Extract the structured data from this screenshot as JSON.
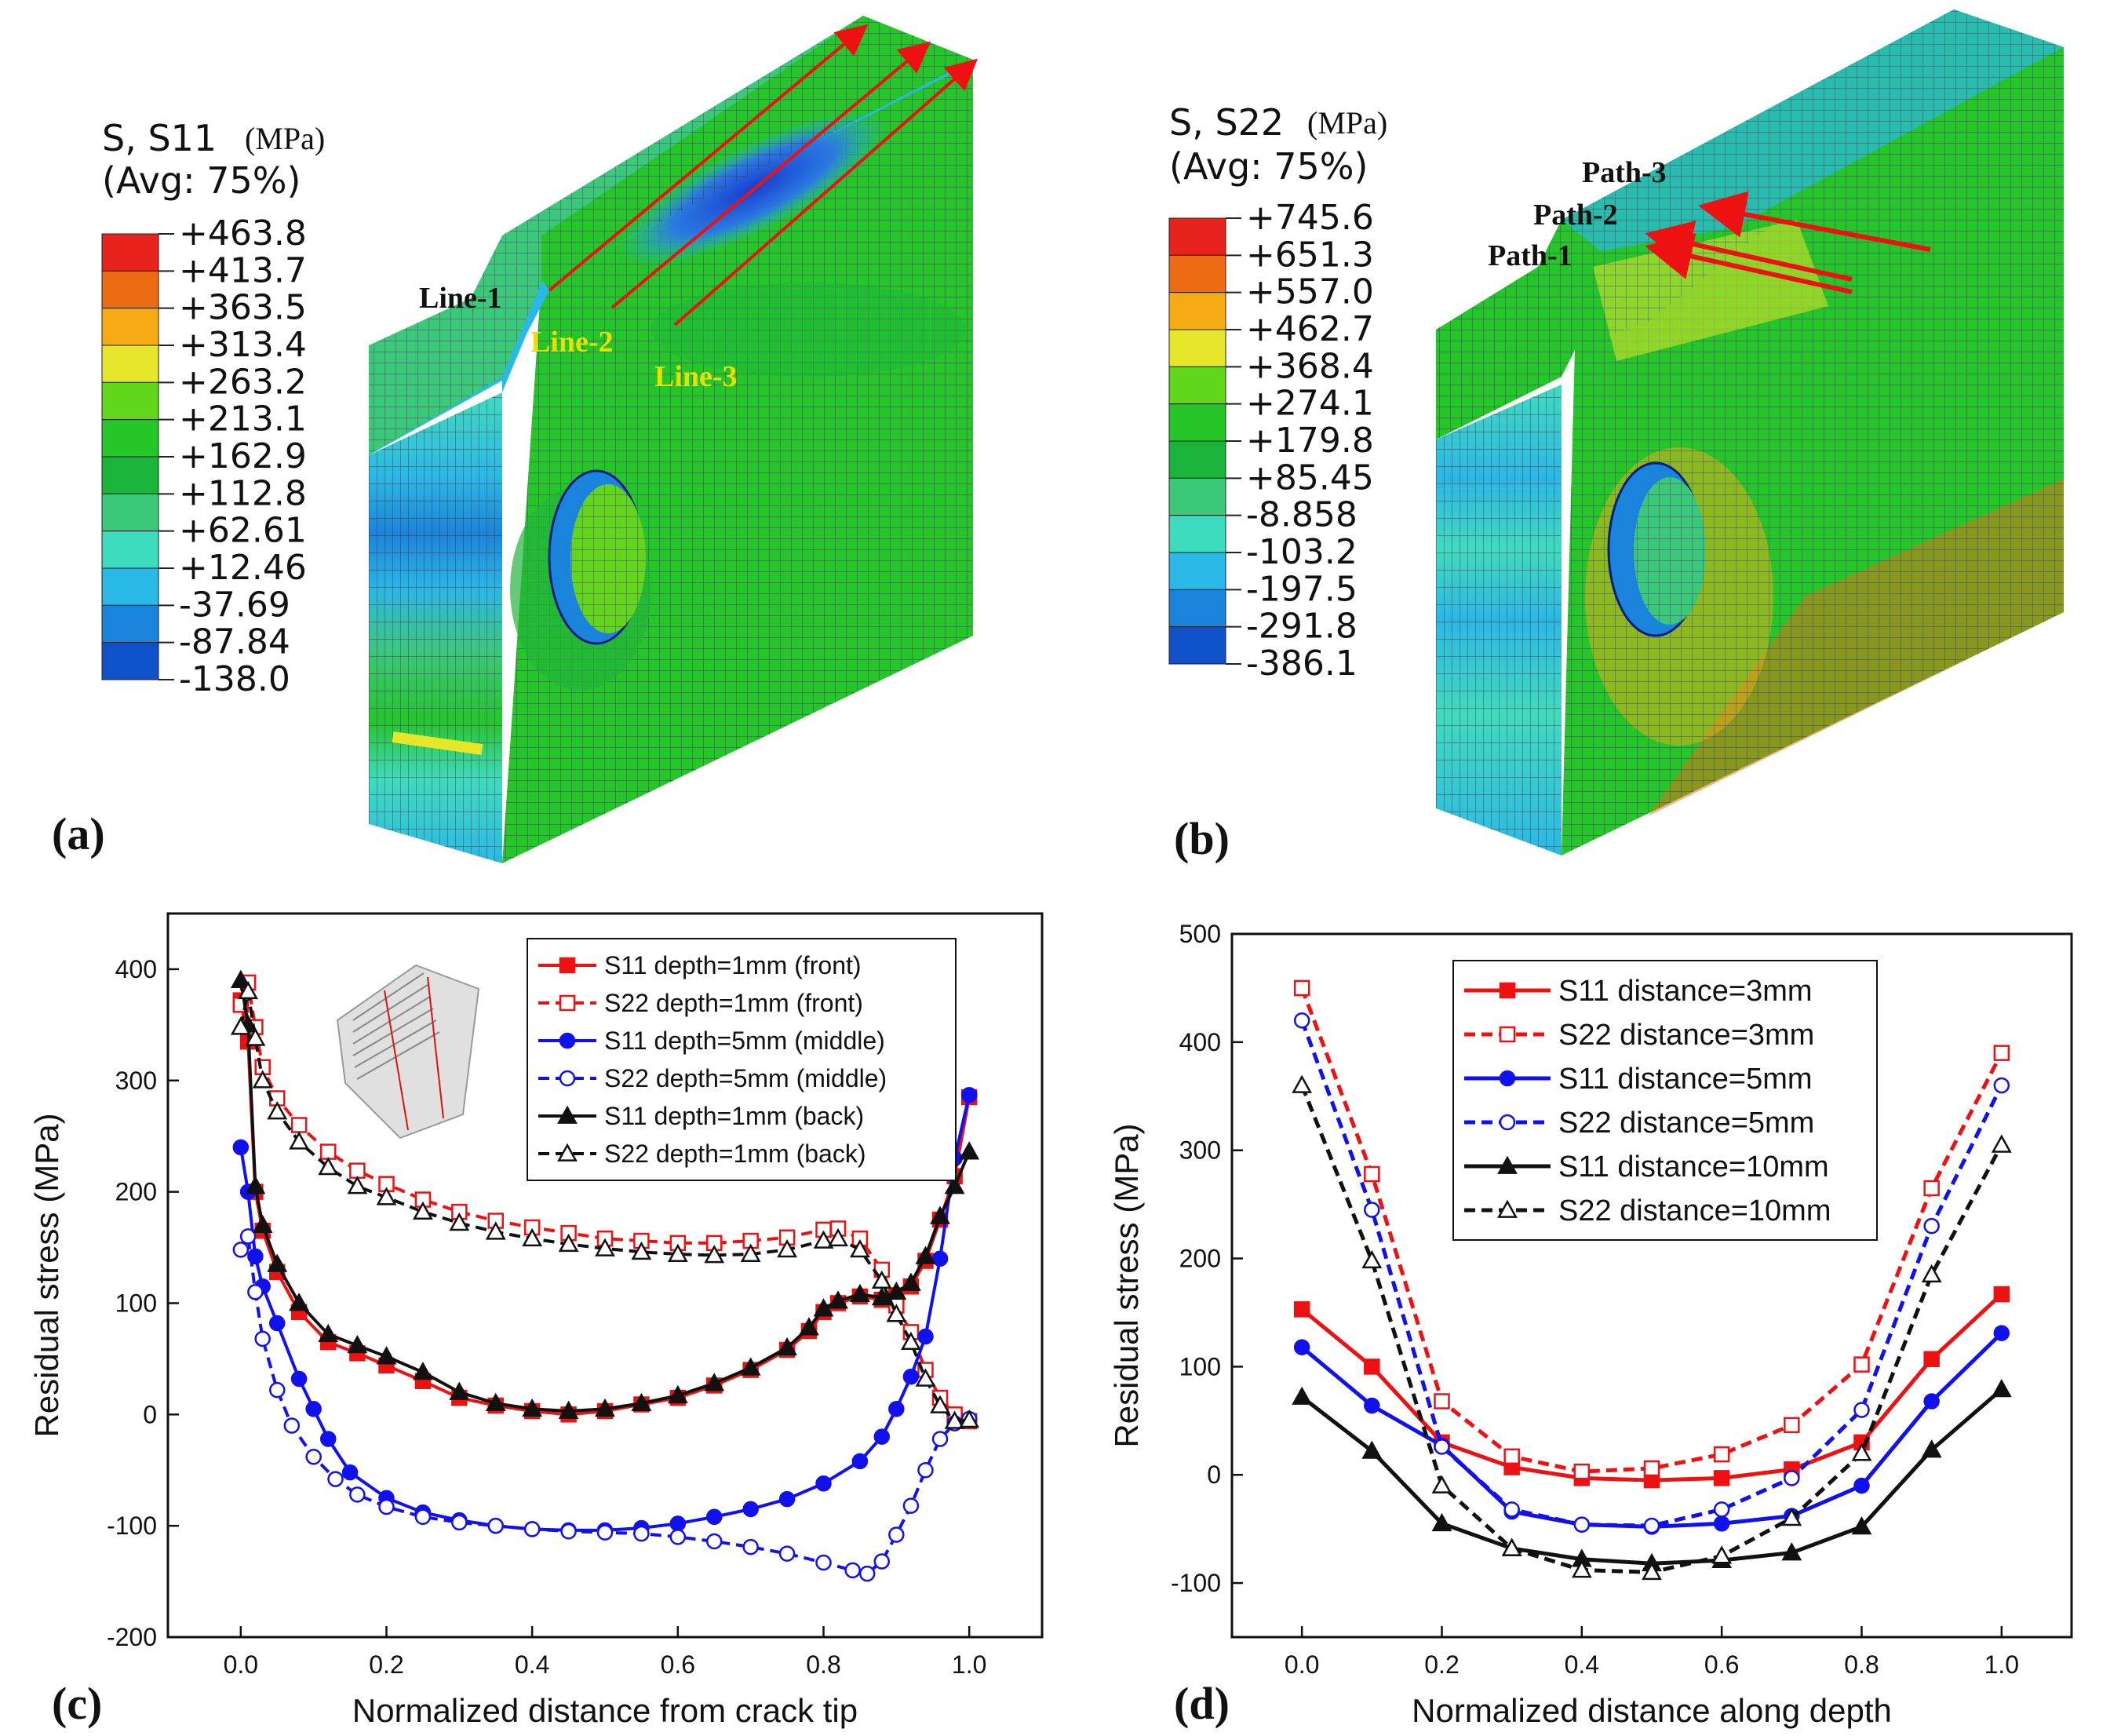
{
  "panels": {
    "a": {
      "label": "(a)",
      "legend_title": "S, S11",
      "legend_unit": "(MPa)",
      "legend_avg": "(Avg: 75%)",
      "contour_values": [
        "+463.8",
        "+413.7",
        "+363.5",
        "+313.4",
        "+263.2",
        "+213.1",
        "+162.9",
        "+112.8",
        "+62.61",
        "+12.46",
        "-37.69",
        "-87.84",
        "-138.0"
      ],
      "callouts": [
        "Line-1",
        "Line-2",
        "Line-3"
      ]
    },
    "b": {
      "label": "(b)",
      "legend_title": "S, S22",
      "legend_unit": "(MPa)",
      "legend_avg": "(Avg: 75%)",
      "contour_values": [
        "+745.6",
        "+651.3",
        "+557.0",
        "+462.7",
        "+368.4",
        "+274.1",
        "+179.8",
        "+85.45",
        "-8.858",
        "-103.2",
        "-197.5",
        "-291.8",
        "-386.1"
      ],
      "callouts": [
        "Path-3",
        "Path-2",
        "Path-1"
      ]
    },
    "c": {
      "label": "(c)"
    },
    "d": {
      "label": "(d)"
    }
  },
  "contour_colors": [
    "#e8221c",
    "#ec6a12",
    "#f6aa14",
    "#e6e62a",
    "#62d61a",
    "#24c628",
    "#1ab43a",
    "#3ac879",
    "#3edcbe",
    "#2ab8e6",
    "#1a84dc",
    "#1050c8",
    "#0a1ee0"
  ],
  "chart_data": [
    {
      "id": "c",
      "type": "line",
      "title": "",
      "xlabel": "Normalized distance from crack tip",
      "ylabel": "Residual stress (MPa)",
      "xlim": [
        -0.1,
        1.1
      ],
      "ylim": [
        -200,
        450
      ],
      "xticks": [
        "0.0",
        "0.2",
        "0.4",
        "0.6",
        "0.8",
        "1.0"
      ],
      "yticks": [
        "-200",
        "-100",
        "0",
        "100",
        "200",
        "300",
        "400"
      ],
      "legend_position": "top-right",
      "series": [
        {
          "name": "S11 depth=1mm (front)",
          "color": "#ee1111",
          "dash": false,
          "marker": "square",
          "filled": true,
          "x": [
            0,
            0.01,
            0.02,
            0.03,
            0.05,
            0.08,
            0.12,
            0.16,
            0.2,
            0.25,
            0.3,
            0.35,
            0.4,
            0.45,
            0.5,
            0.55,
            0.6,
            0.65,
            0.7,
            0.75,
            0.78,
            0.8,
            0.82,
            0.85,
            0.88,
            0.9,
            0.92,
            0.94,
            0.96,
            0.98,
            1.0
          ],
          "y": [
            372,
            335,
            200,
            165,
            128,
            92,
            65,
            55,
            44,
            30,
            15,
            8,
            3,
            0,
            3,
            9,
            15,
            26,
            40,
            58,
            75,
            92,
            100,
            106,
            103,
            107,
            115,
            138,
            175,
            214,
            285
          ]
        },
        {
          "name": "S22 depth=1mm (front)",
          "color": "#ee1111",
          "dash": true,
          "marker": "square",
          "filled": false,
          "x": [
            0,
            0.01,
            0.02,
            0.03,
            0.05,
            0.08,
            0.12,
            0.16,
            0.2,
            0.25,
            0.3,
            0.35,
            0.4,
            0.45,
            0.5,
            0.55,
            0.6,
            0.65,
            0.7,
            0.75,
            0.8,
            0.82,
            0.85,
            0.88,
            0.9,
            0.92,
            0.94,
            0.96,
            0.98,
            1.0
          ],
          "y": [
            368,
            388,
            348,
            312,
            284,
            260,
            236,
            219,
            207,
            193,
            182,
            174,
            168,
            163,
            158,
            156,
            154,
            154,
            156,
            159,
            166,
            167,
            158,
            130,
            98,
            74,
            40,
            15,
            0,
            -6
          ]
        },
        {
          "name": "S11 depth=5mm (middle)",
          "color": "#1111ee",
          "dash": false,
          "marker": "circle",
          "filled": true,
          "x": [
            0,
            0.01,
            0.02,
            0.03,
            0.05,
            0.08,
            0.1,
            0.12,
            0.15,
            0.2,
            0.25,
            0.3,
            0.35,
            0.4,
            0.45,
            0.5,
            0.55,
            0.6,
            0.65,
            0.7,
            0.75,
            0.8,
            0.85,
            0.88,
            0.9,
            0.92,
            0.94,
            0.96,
            0.98,
            1.0
          ],
          "y": [
            240,
            200,
            142,
            115,
            82,
            32,
            5,
            -22,
            -52,
            -75,
            -88,
            -95,
            -100,
            -103,
            -104,
            -104,
            -102,
            -98,
            -92,
            -85,
            -76,
            -62,
            -42,
            -20,
            5,
            34,
            70,
            140,
            230,
            287
          ]
        },
        {
          "name": "S22 depth=5mm (middle)",
          "color": "#1111ee",
          "dash": true,
          "marker": "circle",
          "filled": false,
          "x": [
            0,
            0.01,
            0.02,
            0.03,
            0.05,
            0.07,
            0.1,
            0.13,
            0.16,
            0.2,
            0.25,
            0.3,
            0.35,
            0.4,
            0.45,
            0.5,
            0.55,
            0.6,
            0.65,
            0.7,
            0.75,
            0.8,
            0.84,
            0.86,
            0.88,
            0.9,
            0.92,
            0.94,
            0.96,
            0.98,
            1.0
          ],
          "y": [
            148,
            160,
            110,
            68,
            22,
            -10,
            -38,
            -58,
            -72,
            -83,
            -92,
            -97,
            -100,
            -103,
            -105,
            -106,
            -107,
            -110,
            -114,
            -119,
            -125,
            -133,
            -140,
            -143,
            -132,
            -108,
            -82,
            -50,
            -22,
            -8,
            -4
          ]
        },
        {
          "name": "S11 depth=1mm (back)",
          "color": "#111111",
          "dash": false,
          "marker": "triangle",
          "filled": true,
          "x": [
            0,
            0.01,
            0.02,
            0.03,
            0.05,
            0.08,
            0.12,
            0.16,
            0.2,
            0.25,
            0.3,
            0.35,
            0.4,
            0.45,
            0.5,
            0.55,
            0.6,
            0.65,
            0.7,
            0.75,
            0.78,
            0.8,
            0.82,
            0.85,
            0.88,
            0.9,
            0.92,
            0.94,
            0.96,
            0.98,
            1.0
          ],
          "y": [
            390,
            350,
            205,
            170,
            135,
            100,
            72,
            62,
            52,
            38,
            20,
            10,
            5,
            3,
            5,
            10,
            17,
            28,
            42,
            60,
            78,
            95,
            102,
            108,
            105,
            110,
            118,
            142,
            178,
            205,
            236
          ]
        },
        {
          "name": "S22 depth=1mm (back)",
          "color": "#111111",
          "dash": true,
          "marker": "triangle",
          "filled": false,
          "x": [
            0,
            0.01,
            0.02,
            0.03,
            0.05,
            0.08,
            0.12,
            0.16,
            0.2,
            0.25,
            0.3,
            0.35,
            0.4,
            0.45,
            0.5,
            0.55,
            0.6,
            0.65,
            0.7,
            0.75,
            0.8,
            0.82,
            0.85,
            0.88,
            0.9,
            0.92,
            0.94,
            0.96,
            0.98,
            1.0
          ],
          "y": [
            348,
            380,
            338,
            300,
            272,
            245,
            222,
            205,
            195,
            182,
            172,
            164,
            158,
            153,
            149,
            146,
            144,
            143,
            144,
            148,
            156,
            158,
            148,
            120,
            90,
            65,
            32,
            8,
            -6,
            -5
          ]
        }
      ]
    },
    {
      "id": "d",
      "type": "line",
      "title": "",
      "xlabel": "Normalized distance along depth",
      "ylabel": "Residual stress (MPa)",
      "xlim": [
        -0.1,
        1.1
      ],
      "ylim": [
        -150,
        500
      ],
      "xticks": [
        "0.0",
        "0.2",
        "0.4",
        "0.6",
        "0.8",
        "1.0"
      ],
      "yticks": [
        "-100",
        "0",
        "100",
        "200",
        "300",
        "400",
        "500"
      ],
      "legend_position": "top-center",
      "series": [
        {
          "name": "S11 distance=3mm",
          "color": "#ee1111",
          "dash": false,
          "marker": "square",
          "filled": true,
          "x": [
            0,
            0.1,
            0.2,
            0.3,
            0.4,
            0.5,
            0.6,
            0.7,
            0.8,
            0.9,
            1.0
          ],
          "y": [
            153,
            100,
            30,
            7,
            -3,
            -5,
            -3,
            5,
            30,
            107,
            167
          ]
        },
        {
          "name": "S22 distance=3mm",
          "color": "#ee1111",
          "dash": true,
          "marker": "square",
          "filled": false,
          "x": [
            0,
            0.1,
            0.2,
            0.3,
            0.4,
            0.5,
            0.6,
            0.7,
            0.8,
            0.9,
            1.0
          ],
          "y": [
            450,
            278,
            68,
            17,
            3,
            6,
            19,
            46,
            102,
            265,
            390
          ]
        },
        {
          "name": "S11 distance=5mm",
          "color": "#1111ee",
          "dash": false,
          "marker": "circle",
          "filled": true,
          "x": [
            0,
            0.1,
            0.2,
            0.3,
            0.4,
            0.5,
            0.6,
            0.7,
            0.8,
            0.9,
            1.0
          ],
          "y": [
            118,
            64,
            27,
            -34,
            -46,
            -48,
            -45,
            -38,
            -10,
            68,
            131
          ]
        },
        {
          "name": "S22 distance=5mm",
          "color": "#1111ee",
          "dash": true,
          "marker": "circle",
          "filled": false,
          "x": [
            0,
            0.1,
            0.2,
            0.3,
            0.4,
            0.5,
            0.6,
            0.7,
            0.8,
            0.9,
            1.0
          ],
          "y": [
            420,
            245,
            26,
            -32,
            -46,
            -47,
            -32,
            -3,
            60,
            230,
            360
          ]
        },
        {
          "name": "S11 distance=10mm",
          "color": "#111111",
          "dash": false,
          "marker": "triangle",
          "filled": true,
          "x": [
            0,
            0.1,
            0.2,
            0.3,
            0.4,
            0.5,
            0.6,
            0.7,
            0.8,
            0.9,
            1.0
          ],
          "y": [
            72,
            22,
            -45,
            -68,
            -78,
            -82,
            -79,
            -72,
            -48,
            23,
            79
          ]
        },
        {
          "name": "S22 distance=10mm",
          "color": "#111111",
          "dash": true,
          "marker": "triangle",
          "filled": false,
          "x": [
            0,
            0.1,
            0.2,
            0.3,
            0.4,
            0.5,
            0.6,
            0.7,
            0.8,
            0.9,
            1.0
          ],
          "y": [
            360,
            198,
            -10,
            -68,
            -88,
            -90,
            -75,
            -40,
            20,
            185,
            305
          ]
        }
      ]
    }
  ]
}
